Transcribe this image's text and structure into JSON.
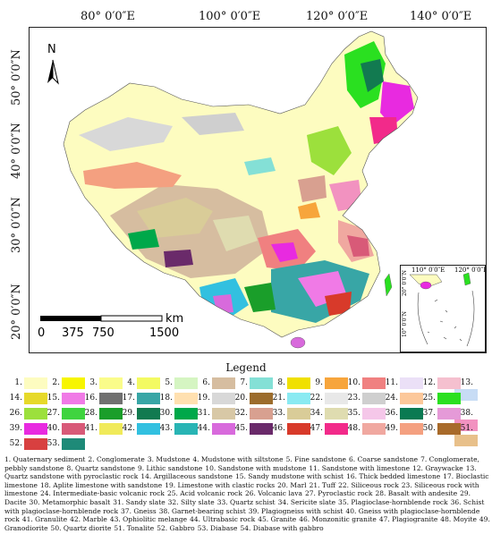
{
  "longitude_labels": [
    "80° 0′0″E",
    "100° 0′0″E",
    "120° 0′0″E",
    "140° 0′0″E"
  ],
  "latitude_labels": [
    "50° 0′0″N",
    "40° 0′0″N",
    "30° 0′0″N",
    "20° 0′0″N"
  ],
  "north_arrow": {
    "label": "N",
    "icon": "north-arrow-icon"
  },
  "scale_bar": {
    "unit": "km",
    "ticks": [
      "0",
      "375",
      "750",
      "1500"
    ]
  },
  "inset": {
    "longitude_labels": [
      "110° 0′0″E",
      "120° 0′0″E"
    ],
    "latitude_labels": [
      "20° 0′0″N",
      "10° 0′0″N"
    ]
  },
  "legend": {
    "title": "Legend",
    "swatches": [
      {
        "n": "1.",
        "color": "#fdfcc0"
      },
      {
        "n": "2.",
        "color": "#f7f500"
      },
      {
        "n": "3.",
        "color": "#fafc8a"
      },
      {
        "n": "4.",
        "color": "#f3fa62"
      },
      {
        "n": "5.",
        "color": "#d5f5c2"
      },
      {
        "n": "6.",
        "color": "#d6bda0"
      },
      {
        "n": "7.",
        "color": "#84e0d6"
      },
      {
        "n": "8.",
        "color": "#f0e000"
      },
      {
        "n": "9.",
        "color": "#f7a53c"
      },
      {
        "n": "10.",
        "color": "#f08080"
      },
      {
        "n": "11.",
        "color": "#ebe0f7"
      },
      {
        "n": "12.",
        "color": "#f5c0cf"
      },
      {
        "n": "13.",
        "color": "#c7dcf5"
      },
      {
        "n": "14.",
        "color": "#e6d92a"
      },
      {
        "n": "15.",
        "color": "#f07ae6"
      },
      {
        "n": "16.",
        "color": "#707070"
      },
      {
        "n": "17.",
        "color": "#38a6a6"
      },
      {
        "n": "18.",
        "color": "#ffe0b0"
      },
      {
        "n": "19.",
        "color": "#d8d8d8"
      },
      {
        "n": "20.",
        "color": "#9c6c2c"
      },
      {
        "n": "21.",
        "color": "#8aeaf2"
      },
      {
        "n": "22.",
        "color": "#e8e8e8"
      },
      {
        "n": "23.",
        "color": "#cfcfcf"
      },
      {
        "n": "24.",
        "color": "#fcc89a"
      },
      {
        "n": "25.",
        "color": "#2ae020"
      },
      {
        "n": "26.",
        "color": "#9ce03c"
      },
      {
        "n": "27.",
        "color": "#3fd43f"
      },
      {
        "n": "28.",
        "color": "#1a9e2a"
      },
      {
        "n": "29.",
        "color": "#127a50"
      },
      {
        "n": "30.",
        "color": "#00a84a"
      },
      {
        "n": "31.",
        "color": "#d8c8a6"
      },
      {
        "n": "32.",
        "color": "#d8a090"
      },
      {
        "n": "33.",
        "color": "#d9cc98"
      },
      {
        "n": "34.",
        "color": "#dfdcb0"
      },
      {
        "n": "35.",
        "color": "#f5c7e9"
      },
      {
        "n": "36.",
        "color": "#0a7a52"
      },
      {
        "n": "37.",
        "color": "#e59ad8"
      },
      {
        "n": "38.",
        "color": "#f292c0"
      },
      {
        "n": "39.",
        "color": "#e82ae0"
      },
      {
        "n": "40.",
        "color": "#d85a78"
      },
      {
        "n": "41.",
        "color": "#f0ea5a"
      },
      {
        "n": "42.",
        "color": "#32c0e0"
      },
      {
        "n": "43.",
        "color": "#28b4b4"
      },
      {
        "n": "44.",
        "color": "#d86adc"
      },
      {
        "n": "45.",
        "color": "#6a2a6a"
      },
      {
        "n": "46.",
        "color": "#d83a2a"
      },
      {
        "n": "47.",
        "color": "#f22a8a"
      },
      {
        "n": "48.",
        "color": "#f0a8a0"
      },
      {
        "n": "49.",
        "color": "#f4a080"
      },
      {
        "n": "50.",
        "color": "#a86a2a"
      },
      {
        "n": "51.",
        "color": "#e8c08a"
      },
      {
        "n": "52.",
        "color": "#d84040"
      },
      {
        "n": "53.",
        "color": "#1e8a78"
      },
      {
        "n": "54.",
        "color": "#3a8a3a"
      }
    ],
    "lithologies": [
      "1. Quaternary sediment",
      "2. Conglomerate",
      "3. Mudstone",
      "4. Mudstone with siltstone",
      "5. Fine sandstone",
      "6. Coarse sandstone",
      "7. Conglomerate, pebbly sandstone",
      "8. Quartz sandstone",
      "9. Lithic sandstone",
      "10. Sandstone with mudstone",
      "11. Sandstone with limestone",
      "12. Graywacke",
      "13. Quartz sandstone with pyroclastic rock",
      "14. Argillaceous sandstone",
      "15. Sandy mudstone with schist",
      "16. Thick bedded limestone",
      "17. Bioclastic limestone",
      "18. Aplite limestone with sandstone",
      "19. Limestone with clastic rocks",
      "20. Marl",
      "21. Tuff",
      "22. Siliceous rock",
      "23. Siliceous rock with limestone",
      "24. Intermediate-basic volcanic rock",
      "25. Acid volcanic rock",
      "26. Volcanic lava",
      "27. Pyroclastic rock",
      "28. Basalt with andesite",
      "29. Dacite",
      "30. Metamorphic basalt",
      "31. Sandy slate",
      "32. Silty slate",
      "33. Quartz schist",
      "34. Sericite slate",
      "35. Plagioclase-hornblende rock",
      "36. Schist with plagioclase-hornblende rock",
      "37. Gneiss",
      "38. Garnet-bearing schist",
      "39. Plagiogneiss with schist",
      "40. Gneiss with plagioclase-hornblende rock",
      "41. Granulite",
      "42. Marble",
      "43. Ophiolitic melange",
      "44. Ultrabasic rock",
      "45. Granite",
      "46. Monzonitic granite",
      "47. Plagiogranite",
      "48. Moyite",
      "49. Granodiorite",
      "50. Quartz diorite",
      "51. Tonalite",
      "52. Gabbro",
      "53. Diabase",
      "54. Diabase with gabbro"
    ]
  }
}
